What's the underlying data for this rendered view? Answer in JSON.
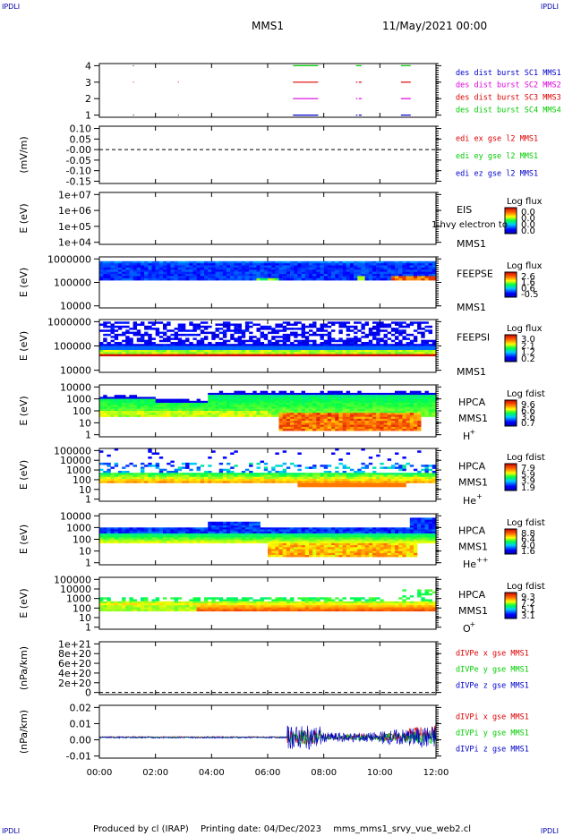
{
  "corners": {
    "tl": "IPDLI",
    "tr": "IPDLI",
    "bl": "IPDLI",
    "br": "IPDLI"
  },
  "header": {
    "spacecraft": "MMS1",
    "datetime": "11/May/2021 00:00"
  },
  "footer": {
    "produced": "Produced by cl (IRAP)",
    "printing": "Printing date: 04/Dec/2023",
    "file": "mms_mms1_srvy_vue_web2.cl"
  },
  "colors": {
    "red": "#dd0000",
    "green": "#00cc00",
    "blue": "#0000cc",
    "magenta": "#dd00dd"
  },
  "chart_data": [
    {
      "type": "line",
      "name": "burst availability",
      "x_range": [
        "00:00",
        "12:00"
      ],
      "y_ticks": [
        "4",
        "3",
        "2",
        "1"
      ],
      "legend": [
        "des dist burst SC1 MMS1",
        "des dist burst SC2 MMS2",
        "des dist burst SC3 MMS3",
        "des dist burst SC4 MMS4"
      ],
      "legend_colors": [
        "#0000cc",
        "#dd00dd",
        "#dd0000",
        "#00cc00"
      ],
      "segments": [
        {
          "level": 4,
          "color": "#00cc00",
          "intervals": [
            [
              6.9,
              7.8
            ],
            [
              9.15,
              9.35
            ],
            [
              10.75,
              11.1
            ]
          ]
        },
        {
          "level": 3,
          "color": "#dd0000",
          "intervals": [
            [
              6.9,
              7.8
            ],
            [
              9.15,
              9.2
            ],
            [
              9.25,
              9.35
            ],
            [
              10.75,
              11.1
            ]
          ]
        },
        {
          "level": 2,
          "color": "#dd00dd",
          "intervals": [
            [
              6.9,
              7.8
            ],
            [
              9.15,
              9.2
            ],
            [
              9.25,
              9.35
            ],
            [
              10.75,
              11.1
            ]
          ]
        },
        {
          "level": 1,
          "color": "#0000cc",
          "intervals": [
            [
              6.9,
              7.8
            ],
            [
              9.15,
              9.2
            ],
            [
              9.25,
              9.35
            ],
            [
              10.75,
              11.1
            ]
          ]
        }
      ]
    },
    {
      "type": "line",
      "name": "EDI electric field",
      "ylabel": "(mV/m)",
      "y_ticks": [
        "0.10",
        "0.05",
        "-0.00",
        "-0.05",
        "-0.10",
        "-0.15"
      ],
      "legend": [
        "edi ex gse l2 MMS1",
        "edi ey gse l2 MMS1",
        "edi ez gse l2 MMS1"
      ],
      "legend_colors": [
        "#dd0000",
        "#00cc00",
        "#0000cc"
      ]
    },
    {
      "type": "heatmap",
      "name": "EIS",
      "ylabel": "E (eV)",
      "y_ticks": [
        "1e+07",
        "1e+06",
        "1e+05",
        "1e+04"
      ],
      "labels": [
        "EIS",
        "MMS1"
      ],
      "overlay": "1 hvy electron to",
      "cbar_title": "Log flux",
      "cbar_ticks": [
        "0.0",
        "0.0",
        "0.0",
        "0.0"
      ]
    },
    {
      "type": "heatmap",
      "name": "FEEPSE",
      "ylabel": "E (eV)",
      "y_ticks": [
        "1000000",
        "100000",
        "10000"
      ],
      "labels": [
        "FEEPSE",
        "MMS1"
      ],
      "cbar_title": "Log flux",
      "cbar_ticks": [
        "2.6",
        "1.6",
        "0.6",
        "-0.5"
      ]
    },
    {
      "type": "heatmap",
      "name": "FEEPSI",
      "ylabel": "E (eV)",
      "y_ticks": [
        "1000000",
        "100000",
        "10000"
      ],
      "labels": [
        "FEEPSI",
        "MMS1"
      ],
      "cbar_title": "Log flux",
      "cbar_ticks": [
        "3.0",
        "2.1",
        "1.2",
        "0.2"
      ]
    },
    {
      "type": "heatmap",
      "name": "HPCA H+",
      "ylabel": "E (eV)",
      "y_ticks": [
        "10000",
        "1000",
        "100",
        "10",
        "1"
      ],
      "labels": [
        "HPCA",
        "MMS1"
      ],
      "species": "H",
      "charge": "+",
      "cbar_title": "Log fdist",
      "cbar_ticks": [
        "9.6",
        "6.6",
        "3.6",
        "0.7"
      ]
    },
    {
      "type": "heatmap",
      "name": "HPCA He+",
      "ylabel": "E (eV)",
      "y_ticks": [
        "100000",
        "10000",
        "1000",
        "100",
        "10",
        "1"
      ],
      "labels": [
        "HPCA",
        "MMS1"
      ],
      "species": "He",
      "charge": "+",
      "cbar_title": "Log fdist",
      "cbar_ticks": [
        "7.9",
        "5.9",
        "3.9",
        "1.9"
      ]
    },
    {
      "type": "heatmap",
      "name": "HPCA He++",
      "ylabel": "E (eV)",
      "y_ticks": [
        "10000",
        "1000",
        "100",
        "10",
        "1"
      ],
      "labels": [
        "HPCA",
        "MMS1"
      ],
      "species": "He",
      "charge": "++",
      "cbar_title": "Log fdist",
      "cbar_ticks": [
        "8.8",
        "6.4",
        "4.0",
        "1.6"
      ]
    },
    {
      "type": "heatmap",
      "name": "HPCA O+",
      "ylabel": "E (eV)",
      "y_ticks": [
        "100000",
        "10000",
        "1000",
        "100",
        "10",
        "1"
      ],
      "labels": [
        "HPCA",
        "MMS1"
      ],
      "species": "O",
      "charge": "+",
      "cbar_title": "Log fdist",
      "cbar_ticks": [
        "9.3",
        "7.2",
        "5.1",
        "3.1"
      ]
    },
    {
      "type": "line",
      "name": "electron pressure divergence",
      "ylabel": "(nPa/km)",
      "y_ticks": [
        "1e+21",
        "8e+20",
        "6e+20",
        "4e+20",
        "2e+20",
        "0"
      ],
      "legend": [
        "dIVPe x gse MMS1",
        "dIVPe y gse MMS1",
        "dIVPe z gse MMS1"
      ],
      "legend_colors": [
        "#dd0000",
        "#00cc00",
        "#0000cc"
      ]
    },
    {
      "type": "line",
      "name": "ion pressure divergence",
      "ylabel": "(nPa/km)",
      "y_ticks": [
        "0.02",
        "0.01",
        "0.00",
        "-0.01"
      ],
      "ylim": [
        -0.015,
        0.023
      ],
      "legend": [
        "dIVPi x gse MMS1",
        "dIVPi y gse MMS1",
        "dIVPi z gse MMS1"
      ],
      "legend_colors": [
        "#dd0000",
        "#00cc00",
        "#0000cc"
      ]
    }
  ],
  "x_axis": {
    "ticks": [
      "00:00",
      "02:00",
      "04:00",
      "06:00",
      "08:00",
      "10:00",
      "12:00"
    ],
    "range_hours": [
      0,
      12
    ]
  }
}
